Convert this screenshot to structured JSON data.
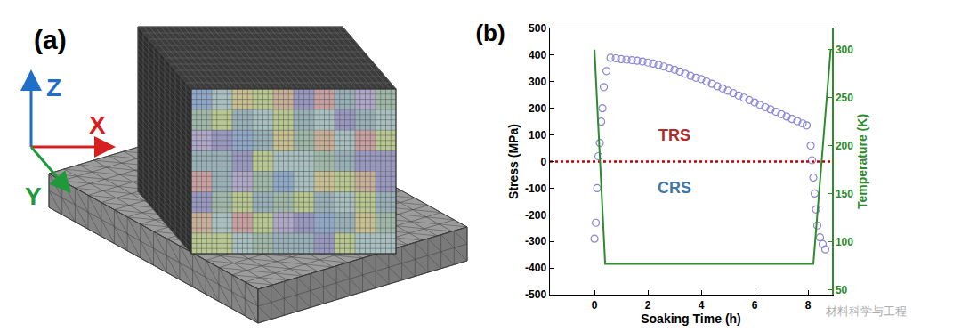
{
  "diagram": {
    "label": "(a)",
    "axes": [
      {
        "label": "Z",
        "color": "#1f6fc8"
      },
      {
        "label": "X",
        "color": "#d42020"
      },
      {
        "label": "Y",
        "color": "#1f9a3a"
      }
    ]
  },
  "chart_data": {
    "type": "scatter",
    "title": "(b)",
    "x_label": "Soaking Time (h)",
    "y_label": "Stress (MPa)",
    "y2_label": "Temperature (K)",
    "xlim": [
      -1.67,
      8.9
    ],
    "xticks": [
      0,
      2,
      4,
      6,
      8
    ],
    "ylim": [
      -500,
      500
    ],
    "yticks": [
      -500,
      -400,
      -300,
      -200,
      -100,
      0,
      100,
      200,
      300,
      400,
      500
    ],
    "y2lim": [
      45,
      322
    ],
    "y2ticks": [
      50,
      100,
      150,
      200,
      250,
      300
    ],
    "grid": false,
    "series": [
      {
        "type": "scatter",
        "axis": "y",
        "color": "#8a86d6",
        "marker": "open_circle",
        "x": [
          0,
          0.05,
          0.1,
          0.15,
          0.2,
          0.25,
          0.3,
          0.35,
          0.45,
          0.6,
          0.8,
          1.0,
          1.2,
          1.4,
          1.6,
          1.8,
          2.0,
          2.2,
          2.4,
          2.6,
          2.8,
          3.0,
          3.2,
          3.4,
          3.6,
          3.8,
          4.0,
          4.2,
          4.4,
          4.6,
          4.8,
          5.0,
          5.2,
          5.4,
          5.6,
          5.8,
          6.0,
          6.2,
          6.4,
          6.6,
          6.8,
          7.0,
          7.2,
          7.4,
          7.6,
          7.8,
          7.95,
          8.1,
          8.15,
          8.2,
          8.25,
          8.3,
          8.35,
          8.45,
          8.55,
          8.65
        ],
        "values": [
          -290,
          -230,
          -100,
          20,
          70,
          150,
          200,
          280,
          340,
          390,
          388,
          385,
          383,
          381,
          379,
          376,
          372,
          368,
          363,
          357,
          351,
          345,
          338,
          330,
          322,
          315,
          310,
          301,
          292,
          283,
          275,
          266,
          257,
          248,
          240,
          231,
          222,
          213,
          204,
          196,
          187,
          178,
          169,
          160,
          152,
          143,
          136,
          60,
          5,
          -60,
          -120,
          -180,
          -240,
          -285,
          -310,
          -330
        ]
      },
      {
        "type": "line",
        "axis": "y2",
        "color": "#2e8b2e",
        "line_style": "solid",
        "x": [
          0,
          0.4,
          8.2,
          8.85
        ],
        "values": [
          300,
          77,
          77,
          300
        ]
      },
      {
        "type": "line",
        "axis": "y",
        "color": "#c00000",
        "line_style": "dot",
        "x": [
          -1.67,
          8.9
        ],
        "values": [
          0,
          0
        ]
      }
    ],
    "annotations": [
      {
        "text": "TRS",
        "x": 3,
        "y": 100,
        "color": "#b22a2a"
      },
      {
        "text": "CRS",
        "x": 3,
        "y": -100,
        "color": "#3f78a8"
      },
      {
        "text": "材料科学与工程",
        "color": "#9a9a9a"
      }
    ]
  }
}
